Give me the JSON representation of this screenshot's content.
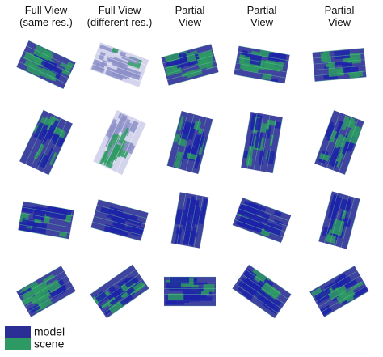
{
  "columns": [
    {
      "lines": [
        "Full View",
        "(same res.)"
      ]
    },
    {
      "lines": [
        "Full View",
        "(different res.)"
      ]
    },
    {
      "lines": [
        "Partial",
        "View"
      ]
    },
    {
      "lines": [
        "Partial",
        "View"
      ]
    },
    {
      "lines": [
        "Partial",
        "View"
      ]
    }
  ],
  "legend": [
    {
      "label": "model",
      "color": "#2b2f95"
    },
    {
      "label": "scene",
      "color": "#2e9a63"
    }
  ]
}
